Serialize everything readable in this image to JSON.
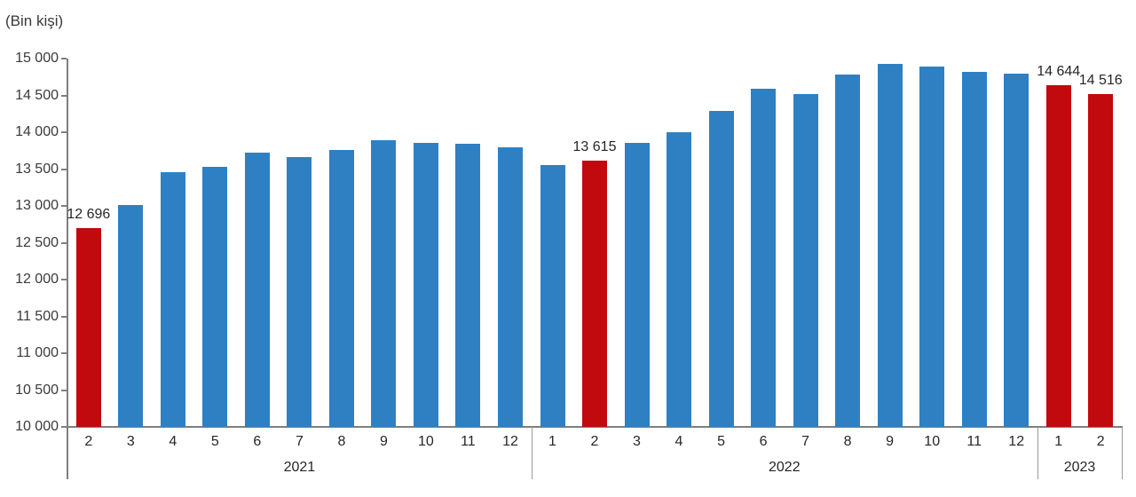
{
  "unit_label": "(Bin kişi)",
  "chart_data": {
    "type": "bar",
    "title": "",
    "ylabel": "(Bin kişi)",
    "xlabel": "",
    "ylim": [
      10000,
      15000
    ],
    "ytick_step": 500,
    "ytick_labels_top_to_bottom": [
      "15 000",
      "14 500",
      "14 000",
      "13 500",
      "13 000",
      "12 500",
      "12 000",
      "11 500",
      "11 000",
      "10 500",
      "10 000"
    ],
    "grid": false,
    "legend": null,
    "colors": {
      "bar_default": "#2e80c3",
      "bar_highlight": "#c00a0e",
      "axis": "#7f7f7f",
      "text": "#262626"
    },
    "sections": [
      {
        "year": "2021",
        "bars": [
          {
            "month": "2",
            "value": 12696,
            "highlight": true,
            "label": "12 696"
          },
          {
            "month": "3",
            "value": 13010,
            "highlight": false,
            "label": null
          },
          {
            "month": "4",
            "value": 13460,
            "highlight": false,
            "label": null
          },
          {
            "month": "5",
            "value": 13530,
            "highlight": false,
            "label": null
          },
          {
            "month": "6",
            "value": 13725,
            "highlight": false,
            "label": null
          },
          {
            "month": "7",
            "value": 13660,
            "highlight": false,
            "label": null
          },
          {
            "month": "8",
            "value": 13755,
            "highlight": false,
            "label": null
          },
          {
            "month": "9",
            "value": 13890,
            "highlight": false,
            "label": null
          },
          {
            "month": "10",
            "value": 13855,
            "highlight": false,
            "label": null
          },
          {
            "month": "11",
            "value": 13840,
            "highlight": false,
            "label": null
          },
          {
            "month": "12",
            "value": 13795,
            "highlight": false,
            "label": null
          }
        ]
      },
      {
        "year": "2022",
        "bars": [
          {
            "month": "1",
            "value": 13560,
            "highlight": false,
            "label": null
          },
          {
            "month": "2",
            "value": 13615,
            "highlight": true,
            "label": "13 615"
          },
          {
            "month": "3",
            "value": 13855,
            "highlight": false,
            "label": null
          },
          {
            "month": "4",
            "value": 13995,
            "highlight": false,
            "label": null
          },
          {
            "month": "5",
            "value": 14290,
            "highlight": false,
            "label": null
          },
          {
            "month": "6",
            "value": 14590,
            "highlight": false,
            "label": null
          },
          {
            "month": "7",
            "value": 14520,
            "highlight": false,
            "label": null
          },
          {
            "month": "8",
            "value": 14785,
            "highlight": false,
            "label": null
          },
          {
            "month": "9",
            "value": 14930,
            "highlight": false,
            "label": null
          },
          {
            "month": "10",
            "value": 14890,
            "highlight": false,
            "label": null
          },
          {
            "month": "11",
            "value": 14825,
            "highlight": false,
            "label": null
          },
          {
            "month": "12",
            "value": 14800,
            "highlight": false,
            "label": null
          }
        ]
      },
      {
        "year": "2023",
        "bars": [
          {
            "month": "1",
            "value": 14644,
            "highlight": true,
            "label": "14 644"
          },
          {
            "month": "2",
            "value": 14516,
            "highlight": true,
            "label": "14 516"
          }
        ]
      }
    ]
  }
}
